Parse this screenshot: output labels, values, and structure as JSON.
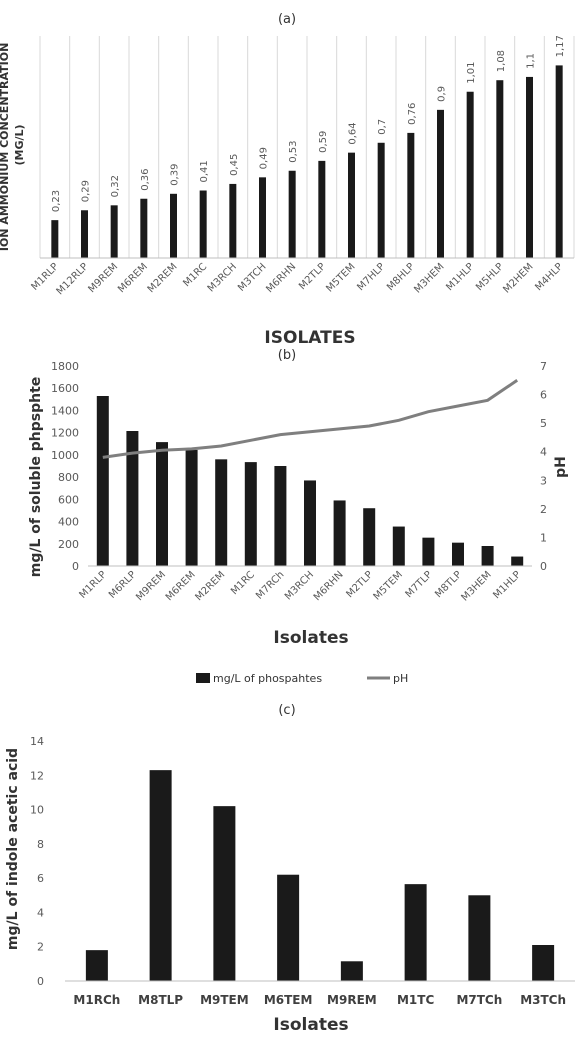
{
  "figure": {
    "panel_a_label": "(a)",
    "panel_b_label": "(b)",
    "panel_c_label": "(c)"
  },
  "chart_data": [
    {
      "type": "bar",
      "panel": "(a)",
      "categories": [
        "M1RLP",
        "M12RLP",
        "M9REM",
        "M6REM",
        "M2REM",
        "M1RC",
        "M3RCH",
        "M3TCH",
        "M6RHN",
        "M2TLP",
        "M5TEM",
        "M7HLP",
        "M8HLP",
        "M3HEM",
        "M1HLP",
        "M5HLP",
        "M2HEM",
        "M4HLP"
      ],
      "values": [
        0.23,
        0.29,
        0.32,
        0.36,
        0.39,
        0.41,
        0.45,
        0.49,
        0.53,
        0.59,
        0.64,
        0.7,
        0.76,
        0.9,
        1.01,
        1.08,
        1.1,
        1.17
      ],
      "data_labels": [
        "0,23",
        "0,29",
        "0,32",
        "0,36",
        "0,39",
        "0,41",
        "0,45",
        "0,49",
        "0,53",
        "0,59",
        "0,64",
        "0,7",
        "0,76",
        "0,9",
        "1,01",
        "1,08",
        "1,1",
        "1,17"
      ],
      "xlabel": "ISOLATES",
      "ylabel": "ION AMMONIUM CONCENTRATION (MG/L)",
      "ylim": [
        0,
        1.3
      ],
      "grid": "vertical",
      "colors": {
        "bar": "#1a1a1a",
        "grid": "#d9d9d9",
        "label": "#595959"
      }
    },
    {
      "type": "bar",
      "panel": "(b)",
      "categories": [
        "M1RLP",
        "M6RLP",
        "M9REM",
        "M6REM",
        "M2REM",
        "M1RC",
        "M7RCh",
        "M3RCH",
        "M6RHN",
        "M2TLP",
        "M5TEM",
        "M7TLP",
        "M8TLP",
        "M3HEM",
        "M1HLP"
      ],
      "series": [
        {
          "name": "mg/L of phospahtes",
          "type": "bar",
          "axis": "left",
          "values": [
            1530,
            1215,
            1115,
            1045,
            960,
            935,
            900,
            770,
            590,
            520,
            355,
            255,
            210,
            180,
            85
          ]
        },
        {
          "name": "pH",
          "type": "line",
          "axis": "right",
          "values": [
            3.8,
            3.95,
            4.05,
            4.1,
            4.2,
            4.4,
            4.6,
            4.7,
            4.8,
            4.9,
            5.1,
            5.4,
            5.6,
            5.8,
            6.5
          ]
        }
      ],
      "xlabel": "Isolates",
      "ylabel": "mg/L of soluble phpsphte",
      "y2label": "pH",
      "ylim": [
        0,
        1800
      ],
      "y2lim": [
        0,
        7
      ],
      "yticks": [
        "0",
        "200",
        "400",
        "600",
        "800",
        "1000",
        "1200",
        "1400",
        "1600",
        "1800"
      ],
      "y2ticks": [
        "0",
        "1",
        "2",
        "3",
        "4",
        "5",
        "6",
        "7"
      ],
      "legend_position": "bottom",
      "colors": {
        "bar": "#1a1a1a",
        "line": "#7f7f7f"
      }
    },
    {
      "type": "bar",
      "panel": "(c)",
      "categories": [
        "M1RCh",
        "M8TLP",
        "M9TEM",
        "M6TEM",
        "M9REM",
        "M1TC",
        "M7TCh",
        "M3TCh"
      ],
      "values": [
        1.8,
        12.3,
        10.2,
        6.2,
        1.15,
        5.65,
        5.0,
        2.1
      ],
      "xlabel": "Isolates",
      "ylabel": "mg/L of  indole acetic acid",
      "ylim": [
        0,
        14
      ],
      "yticks": [
        "0",
        "2",
        "4",
        "6",
        "8",
        "10",
        "12",
        "14"
      ],
      "colors": {
        "bar": "#1a1a1a",
        "tick": "#595959"
      }
    }
  ]
}
